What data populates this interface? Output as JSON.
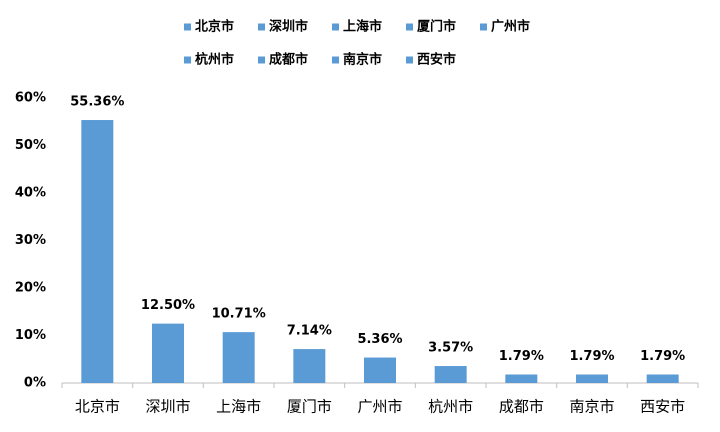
{
  "chart_data": {
    "type": "bar",
    "categories": [
      "北京市",
      "深圳市",
      "上海市",
      "厦门市",
      "广州市",
      "杭州市",
      "成都市",
      "南京市",
      "西安市"
    ],
    "values": [
      55.36,
      12.5,
      10.71,
      7.14,
      5.36,
      3.57,
      1.79,
      1.79,
      1.79
    ],
    "value_labels": [
      "55.36%",
      "12.50%",
      "10.71%",
      "7.14%",
      "5.36%",
      "3.57%",
      "1.79%",
      "1.79%",
      "1.79%"
    ],
    "color": "#5b9bd5",
    "ylim": [
      0,
      60
    ],
    "yticks": [
      {
        "value": 0,
        "label": "0%"
      },
      {
        "value": 10,
        "label": "10%"
      },
      {
        "value": 20,
        "label": "20%"
      },
      {
        "value": 30,
        "label": "30%"
      },
      {
        "value": 40,
        "label": "40%"
      },
      {
        "value": 50,
        "label": "50%"
      },
      {
        "value": 60,
        "label": "60%"
      }
    ],
    "grid": false,
    "legend": "top"
  }
}
